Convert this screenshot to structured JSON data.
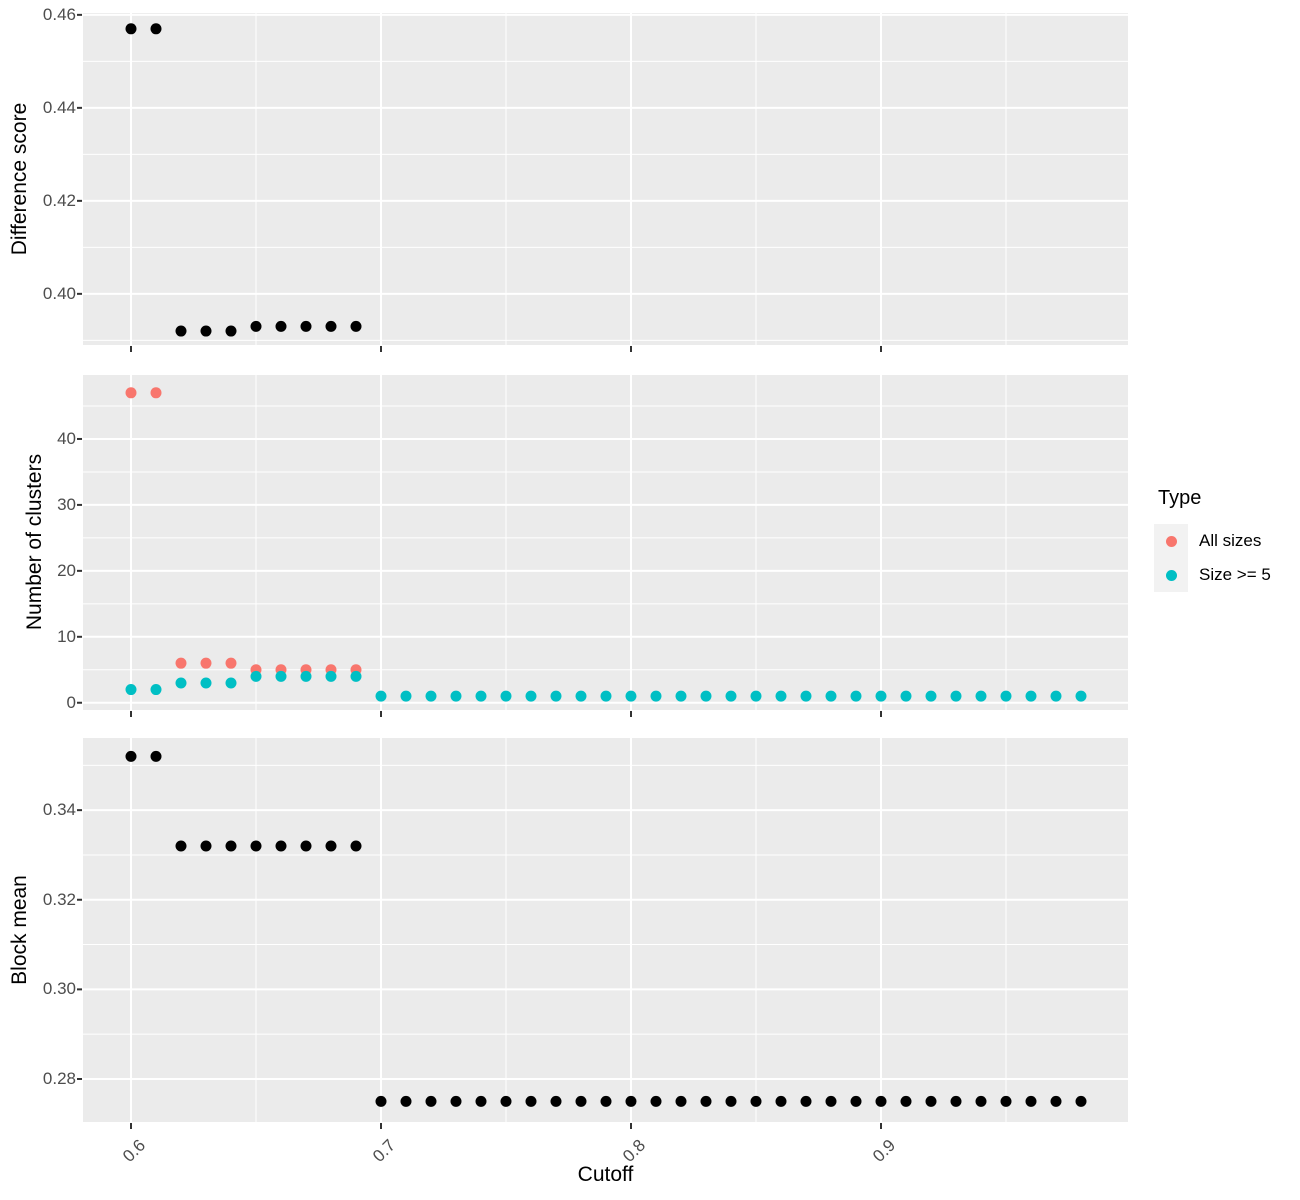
{
  "figure": {
    "background": "#FFFFFF",
    "panel_background": "#EBEBEB",
    "grid_color": "#FFFFFF",
    "tick_color": "#333333",
    "tick_label_color": "#4D4D4D",
    "point_color_default": "#000000"
  },
  "legend": {
    "title": "Type",
    "key_background": "#F2F2F2",
    "items": [
      {
        "label": "All sizes",
        "color": "#F8766D"
      },
      {
        "label": "Size >= 5",
        "color": "#00BFC4"
      }
    ]
  },
  "chart_data": {
    "type": "scatter",
    "xlabel": "Cutoff",
    "xlim": [
      0.5808,
      0.9988
    ],
    "x_major_ticks": [
      0.6,
      0.7,
      0.8,
      0.9
    ],
    "x_major_tick_labels": [
      "0.6",
      "0.7",
      "0.8",
      "0.9"
    ],
    "x_minor_ticks": [
      0.65,
      0.75,
      0.85,
      0.95
    ],
    "x_values": [
      0.6,
      0.61,
      0.62,
      0.63,
      0.64,
      0.65,
      0.66,
      0.67,
      0.68,
      0.69,
      0.7,
      0.71,
      0.72,
      0.73,
      0.74,
      0.75,
      0.76,
      0.77,
      0.78,
      0.79,
      0.8,
      0.81,
      0.82,
      0.83,
      0.84,
      0.85,
      0.86,
      0.87,
      0.88,
      0.89,
      0.9,
      0.91,
      0.92,
      0.93,
      0.94,
      0.95,
      0.96,
      0.97,
      0.98
    ],
    "panels": [
      {
        "ylabel": "Difference score",
        "ylim": [
          0.389,
          0.4604
        ],
        "yticks": [
          0.4,
          0.42,
          0.44,
          0.46
        ],
        "ytick_labels": [
          "0.40",
          "0.42",
          "0.44",
          "0.46"
        ],
        "yminor": [
          0.39,
          0.41,
          0.43,
          0.45
        ],
        "series": [
          {
            "name": "Difference score",
            "color": "#000000",
            "x": [
              0.6,
              0.61,
              0.62,
              0.63,
              0.64,
              0.65,
              0.66,
              0.67,
              0.68,
              0.69
            ],
            "y": [
              0.457,
              0.457,
              0.392,
              0.392,
              0.392,
              0.393,
              0.393,
              0.393,
              0.393,
              0.393
            ]
          }
        ]
      },
      {
        "ylabel": "Number of clusters",
        "ylim": [
          -1.1,
          49.7
        ],
        "yticks": [
          0,
          10,
          20,
          30,
          40
        ],
        "ytick_labels": [
          "0",
          "10",
          "20",
          "30",
          "40"
        ],
        "yminor": [
          5,
          15,
          25,
          35,
          45
        ],
        "series": [
          {
            "name": "All sizes",
            "color": "#F8766D",
            "x": [
              0.6,
              0.61,
              0.62,
              0.63,
              0.64,
              0.65,
              0.66,
              0.67,
              0.68,
              0.69
            ],
            "y": [
              47,
              47,
              6,
              6,
              6,
              5,
              5,
              5,
              5,
              5
            ]
          },
          {
            "name": "Size >= 5",
            "color": "#00BFC4",
            "x": [
              0.6,
              0.61,
              0.62,
              0.63,
              0.64,
              0.65,
              0.66,
              0.67,
              0.68,
              0.69,
              0.7,
              0.71,
              0.72,
              0.73,
              0.74,
              0.75,
              0.76,
              0.77,
              0.78,
              0.79,
              0.8,
              0.81,
              0.82,
              0.83,
              0.84,
              0.85,
              0.86,
              0.87,
              0.88,
              0.89,
              0.9,
              0.91,
              0.92,
              0.93,
              0.94,
              0.95,
              0.96,
              0.97,
              0.98
            ],
            "y": [
              2,
              2,
              3,
              3,
              3,
              4,
              4,
              4,
              4,
              4,
              1,
              1,
              1,
              1,
              1,
              1,
              1,
              1,
              1,
              1,
              1,
              1,
              1,
              1,
              1,
              1,
              1,
              1,
              1,
              1,
              1,
              1,
              1,
              1,
              1,
              1,
              1,
              1,
              1
            ]
          }
        ]
      },
      {
        "ylabel": "Block mean",
        "ylim": [
          0.2704,
          0.3561
        ],
        "yticks": [
          0.28,
          0.3,
          0.32,
          0.34
        ],
        "ytick_labels": [
          "0.28",
          "0.30",
          "0.32",
          "0.34"
        ],
        "yminor": [
          0.29,
          0.31,
          0.33,
          0.35
        ],
        "series": [
          {
            "name": "Block mean",
            "color": "#000000",
            "x": [
              0.6,
              0.61,
              0.62,
              0.63,
              0.64,
              0.65,
              0.66,
              0.67,
              0.68,
              0.69,
              0.7,
              0.71,
              0.72,
              0.73,
              0.74,
              0.75,
              0.76,
              0.77,
              0.78,
              0.79,
              0.8,
              0.81,
              0.82,
              0.83,
              0.84,
              0.85,
              0.86,
              0.87,
              0.88,
              0.89,
              0.9,
              0.91,
              0.92,
              0.93,
              0.94,
              0.95,
              0.96,
              0.97,
              0.98
            ],
            "y": [
              0.352,
              0.352,
              0.332,
              0.332,
              0.332,
              0.332,
              0.332,
              0.332,
              0.332,
              0.332,
              0.275,
              0.275,
              0.275,
              0.275,
              0.275,
              0.275,
              0.275,
              0.275,
              0.275,
              0.275,
              0.275,
              0.275,
              0.275,
              0.275,
              0.275,
              0.275,
              0.275,
              0.275,
              0.275,
              0.275,
              0.275,
              0.275,
              0.275,
              0.275,
              0.275,
              0.275,
              0.275,
              0.275,
              0.275
            ]
          }
        ]
      }
    ]
  }
}
